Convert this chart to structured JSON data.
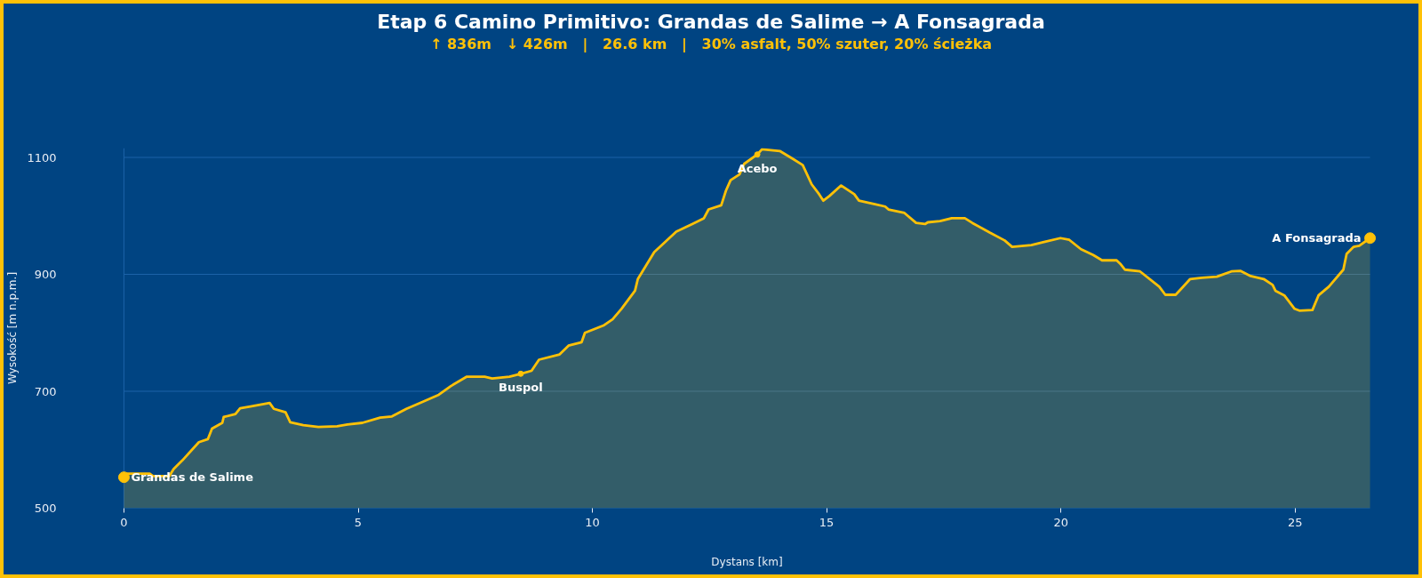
{
  "chart_data": {
    "type": "area",
    "title": "Etap 6 Camino Primitivo: Grandas de Salime → A Fonsagrada",
    "subtitle": "↑ 836m   ↓ 426m   |   26.6 km   |   30% asfalt, 50% szuter, 20% ścieżka",
    "xlabel": "Dystans [km]",
    "ylabel": "Wysokość [m n.p.m.]",
    "x": [
      0,
      0.06,
      0.55,
      0.62,
      0.97,
      1.06,
      1.25,
      1.6,
      1.79,
      1.88,
      2.1,
      2.13,
      2.38,
      2.48,
      2.7,
      3.11,
      3.2,
      3.45,
      3.55,
      3.83,
      4.15,
      4.55,
      4.77,
      5.09,
      5.47,
      5.72,
      6.03,
      6.35,
      6.72,
      6.98,
      7.32,
      7.7,
      7.86,
      8.23,
      8.47,
      8.7,
      8.86,
      9.3,
      9.49,
      9.77,
      9.84,
      10.25,
      10.43,
      10.62,
      10.91,
      10.97,
      11.32,
      11.79,
      12.13,
      12.38,
      12.48,
      12.75,
      12.85,
      12.95,
      13.14,
      13.24,
      13.52,
      13.62,
      14.0,
      14.29,
      14.49,
      14.68,
      14.84,
      14.93,
      15.06,
      15.31,
      15.59,
      15.69,
      16.03,
      16.25,
      16.32,
      16.66,
      16.91,
      17.1,
      17.16,
      17.42,
      17.67,
      17.95,
      18.11,
      18.49,
      18.8,
      18.96,
      19.37,
      19.62,
      19.99,
      20.18,
      20.43,
      20.69,
      20.88,
      21.19,
      21.28,
      21.37,
      21.69,
      22.1,
      22.23,
      22.45,
      22.6,
      22.76,
      23.01,
      23.33,
      23.64,
      23.83,
      24.05,
      24.33,
      24.52,
      24.58,
      24.77,
      24.99,
      25.09,
      25.37,
      25.5,
      25.72,
      26.03,
      26.1,
      26.25,
      26.37,
      26.6
    ],
    "series": [
      {
        "color": "#ffc107",
        "values": [
          553,
          559,
          559,
          555,
          555,
          567,
          582,
          613,
          618,
          636,
          646,
          656,
          661,
          671,
          674,
          680,
          670,
          664,
          647,
          642,
          639,
          640,
          643,
          646,
          655,
          657,
          670,
          681,
          694,
          709,
          725,
          725,
          722,
          725,
          730,
          735,
          754,
          763,
          778,
          784,
          800,
          813,
          823,
          841,
          872,
          892,
          938,
          973,
          986,
          996,
          1011,
          1018,
          1043,
          1061,
          1071,
          1089,
          1105,
          1114,
          1111,
          1097,
          1087,
          1054,
          1037,
          1026,
          1034,
          1052,
          1037,
          1026,
          1020,
          1016,
          1011,
          1005,
          988,
          986,
          989,
          991,
          996,
          996,
          988,
          971,
          958,
          947,
          950,
          955,
          962,
          959,
          943,
          933,
          924,
          924,
          917,
          908,
          905,
          879,
          865,
          865,
          878,
          892,
          894,
          896,
          905,
          906,
          897,
          892,
          882,
          872,
          864,
          841,
          838,
          839,
          864,
          879,
          908,
          935,
          947,
          949,
          962
        ]
      }
    ],
    "xlim": [
      0,
      26.6
    ],
    "ylim": [
      500,
      1116
    ],
    "xticks": [
      0,
      5,
      10,
      15,
      20,
      25
    ],
    "yticks": [
      500,
      700,
      900,
      1100
    ],
    "grid": "y",
    "annotations": [
      {
        "text": "Grandas de Salime",
        "x": 0,
        "y": 553
      },
      {
        "text": "Buspol",
        "x": 8.47,
        "y": 730
      },
      {
        "text": "Acebo",
        "x": 13.52,
        "y": 1105
      },
      {
        "text": "A Fonsagrada",
        "x": 26.6,
        "y": 962
      }
    ]
  }
}
